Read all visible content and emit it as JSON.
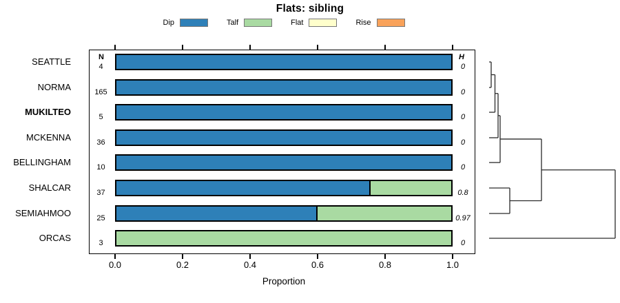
{
  "title": "Flats: sibling",
  "legend": {
    "items": [
      {
        "label": "Dip",
        "color": "#2E80B8"
      },
      {
        "label": "Talf",
        "color": "#A9DAA2"
      },
      {
        "label": "Flat",
        "color": "#FFFFCC"
      },
      {
        "label": "Rise",
        "color": "#F9A25A"
      }
    ]
  },
  "columns": {
    "n_header": "N",
    "h_header": "H"
  },
  "axis": {
    "label": "Proportion",
    "ticks": [
      "0.0",
      "0.2",
      "0.4",
      "0.6",
      "0.8",
      "1.0"
    ],
    "min": 0,
    "max": 1
  },
  "chart_data": {
    "type": "bar",
    "orientation": "horizontal",
    "stacked": true,
    "title": "Flats: sibling",
    "xlabel": "Proportion",
    "xlim": [
      0,
      1
    ],
    "categories": [
      "SEATTLE",
      "NORMA",
      "MUKILTEO",
      "MCKENNA",
      "BELLINGHAM",
      "SHALCAR",
      "SEMIAHMOO",
      "ORCAS"
    ],
    "emphasized_category": "MUKILTEO",
    "n": [
      "4",
      "165",
      "5",
      "36",
      "10",
      "37",
      "25",
      "3"
    ],
    "h": [
      "0",
      "0",
      "0",
      "0",
      "0",
      "0.8",
      "0.97",
      "0"
    ],
    "series": [
      {
        "name": "Dip",
        "color": "#2E80B8",
        "values": [
          1,
          1,
          1,
          1,
          1,
          0.757,
          0.6,
          0
        ]
      },
      {
        "name": "Talf",
        "color": "#A9DAA2",
        "values": [
          0,
          0,
          0,
          0,
          0,
          0.243,
          0.4,
          1
        ]
      },
      {
        "name": "Flat",
        "color": "#FFFFCC",
        "values": [
          0,
          0,
          0,
          0,
          0,
          0,
          0,
          0
        ]
      },
      {
        "name": "Rise",
        "color": "#F9A25A",
        "values": [
          0,
          0,
          0,
          0,
          0,
          0,
          0,
          0
        ]
      }
    ],
    "dendrogram": {
      "orientation": "right",
      "leaf_x": 710,
      "merges": [
        {
          "a": "SEATTLE",
          "b": "NORMA",
          "x": 713
        },
        {
          "a": "m0",
          "b": "MUKILTEO",
          "x": 718.5
        },
        {
          "a": "m1",
          "b": "MCKENNA",
          "x": 723
        },
        {
          "a": "m2",
          "b": "BELLINGHAM",
          "x": 726
        },
        {
          "a": "SHALCAR",
          "b": "SEMIAHMOO",
          "x": 740
        },
        {
          "a": "m3",
          "b": "m4",
          "x": 786
        },
        {
          "a": "m5",
          "b": "ORCAS",
          "x": 893
        }
      ]
    }
  }
}
